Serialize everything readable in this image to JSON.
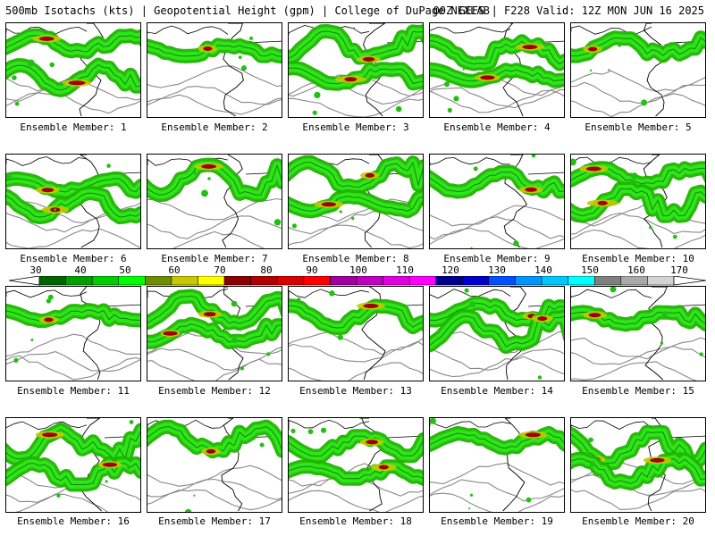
{
  "header": {
    "left": "500mb Isotachs (kts) | Geopotential Height (gpm) | College of DuPage NEXLAB",
    "right": "00Z GEFS | F228 Valid: 12Z MON JUN 16 2025"
  },
  "colorbar": {
    "ticks": [
      "30",
      "40",
      "50",
      "60",
      "70",
      "80",
      "90",
      "100",
      "110",
      "120",
      "130",
      "140",
      "150",
      "160",
      "170"
    ],
    "colors": [
      "#006400",
      "#00a000",
      "#00cc00",
      "#00ff00",
      "#6e8e00",
      "#c8c800",
      "#ffff00",
      "#8b0000",
      "#b00000",
      "#d80000",
      "#ff0000",
      "#a000a0",
      "#c000c0",
      "#e000e0",
      "#ff00ff",
      "#00008b",
      "#0000cd",
      "#0050ff",
      "#0096ff",
      "#00c8ff",
      "#00ffff",
      "#808080",
      "#a9a9a9",
      "#d3d3d3"
    ]
  },
  "panels": [
    {
      "label": "Ensemble Member: 1"
    },
    {
      "label": "Ensemble Member: 2"
    },
    {
      "label": "Ensemble Member: 3"
    },
    {
      "label": "Ensemble Member: 4"
    },
    {
      "label": "Ensemble Member: 5"
    },
    {
      "label": "Ensemble Member: 6"
    },
    {
      "label": "Ensemble Member: 7"
    },
    {
      "label": "Ensemble Member: 8"
    },
    {
      "label": "Ensemble Member: 9"
    },
    {
      "label": "Ensemble Member: 10"
    },
    {
      "label": "Ensemble Member: 11"
    },
    {
      "label": "Ensemble Member: 12"
    },
    {
      "label": "Ensemble Member: 13"
    },
    {
      "label": "Ensemble Member: 14"
    },
    {
      "label": "Ensemble Member: 15"
    },
    {
      "label": "Ensemble Member: 16"
    },
    {
      "label": "Ensemble Member: 17"
    },
    {
      "label": "Ensemble Member: 18"
    },
    {
      "label": "Ensemble Member: 19"
    },
    {
      "label": "Ensemble Member: 20"
    }
  ]
}
